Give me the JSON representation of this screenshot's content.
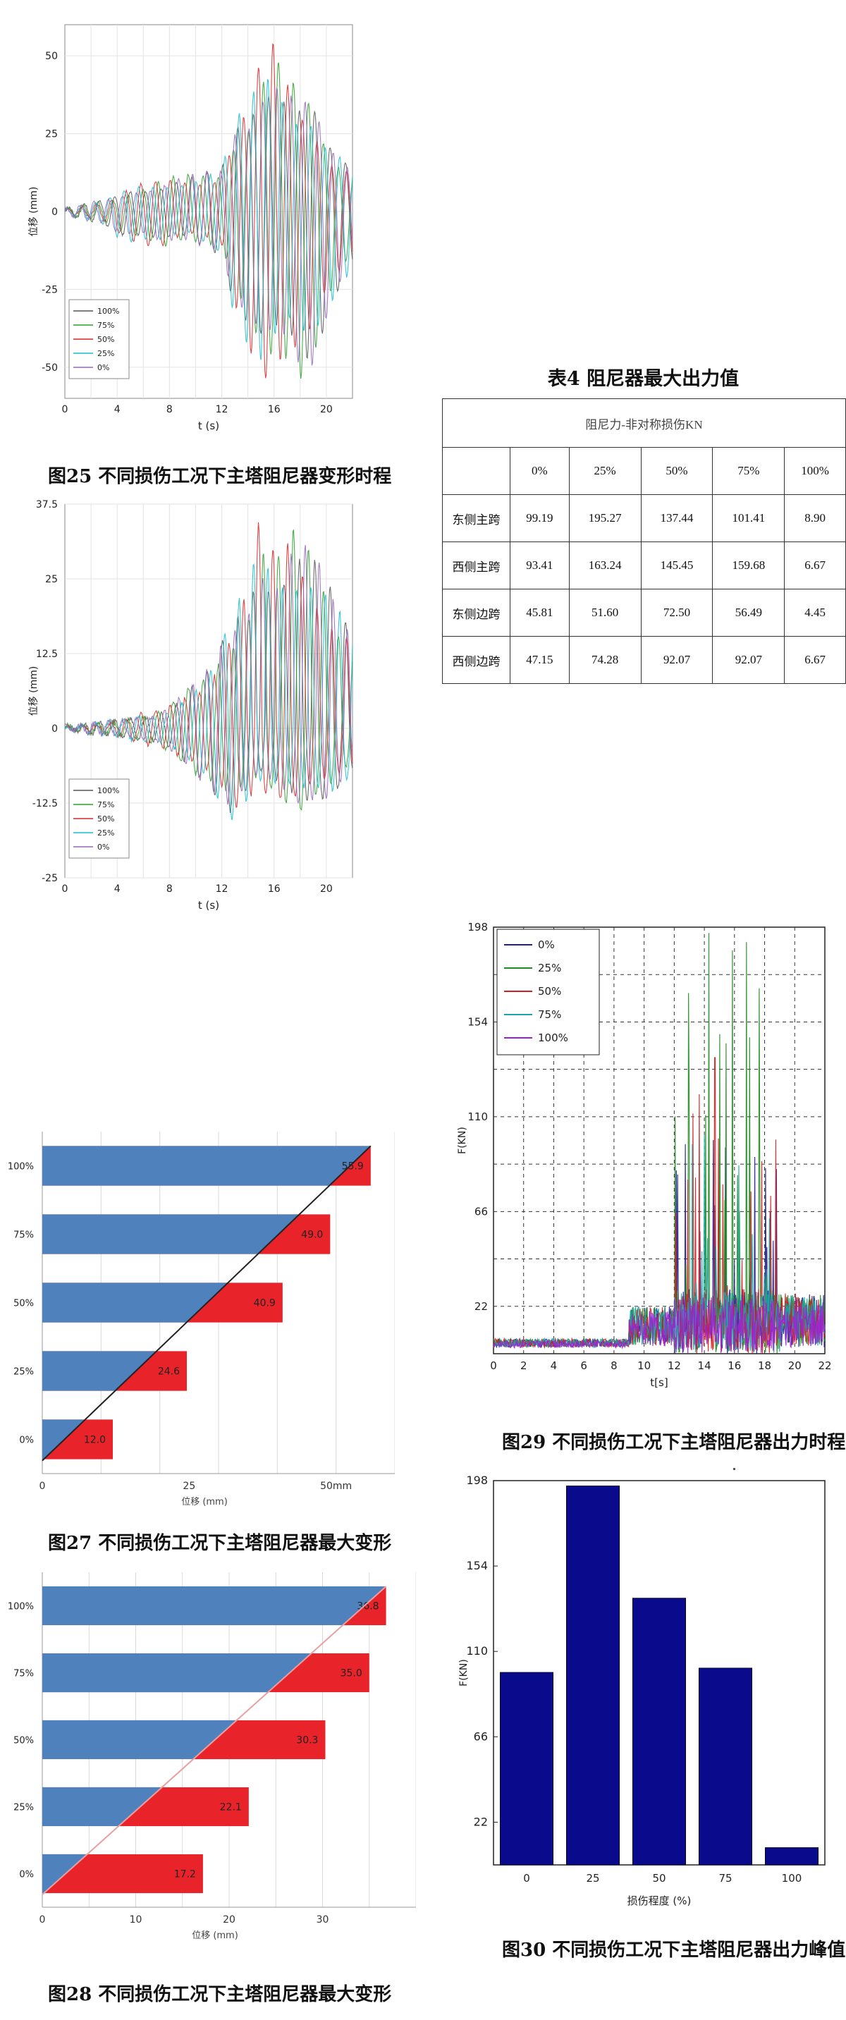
{
  "figures": {
    "fig25": {
      "caption": "图25  不同损伤工况下主塔阻尼器变形时程"
    },
    "fig26": {
      "caption": ""
    },
    "fig27": {
      "caption": "图27  不同损伤工况下主塔阻尼器最大变形"
    },
    "fig28": {
      "caption": "图28  不同损伤工况下主塔阻尼器最大变形"
    },
    "fig29": {
      "caption": "图29  不同损伤工况下主塔阻尼器出力时程"
    },
    "fig30": {
      "caption": "图30  不同损伤工况下主塔阻尼器出力峰值"
    }
  },
  "table4": {
    "title": "表4  阻尼器最大出力值",
    "header": "阻尼力-非对称损伤KN",
    "columns": [
      "0%",
      "25%",
      "50%",
      "75%",
      "100%"
    ],
    "rows": [
      {
        "label": "东侧主跨",
        "values": [
          "99.19",
          "195.27",
          "137.44",
          "101.41",
          "8.90"
        ]
      },
      {
        "label": "西侧主跨",
        "values": [
          "93.41",
          "163.24",
          "145.45",
          "159.68",
          "6.67"
        ]
      },
      {
        "label": "东侧边跨",
        "values": [
          "45.81",
          "51.60",
          "72.50",
          "56.49",
          "4.45"
        ]
      },
      {
        "label": "西侧边跨",
        "values": [
          "47.15",
          "74.28",
          "92.07",
          "92.07",
          "6.67"
        ]
      }
    ]
  },
  "chart_data": [
    {
      "id": "fig25",
      "type": "line",
      "xlabel": "t (s)",
      "ylabel": "位移 (mm)",
      "xlim": [
        0,
        22
      ],
      "ylim": [
        -60,
        60
      ],
      "xticks": [
        0,
        4,
        8,
        12,
        16,
        20
      ],
      "yticks": [
        50,
        25,
        0,
        -25,
        -50
      ],
      "ytick_labels": [
        "50",
        "25",
        "0",
        "-25",
        "-50"
      ],
      "legend": "bottom-left",
      "grid": true,
      "series": [
        {
          "name": "100%",
          "color": "#555555"
        },
        {
          "name": "75%",
          "color": "#2ca02c"
        },
        {
          "name": "50%",
          "color": "#d62728"
        },
        {
          "name": "25%",
          "color": "#17becf"
        },
        {
          "name": "0%",
          "color": "#9467bd"
        }
      ],
      "x": [
        0,
        1,
        2,
        3,
        4,
        5,
        6,
        7,
        8,
        9,
        10,
        11,
        12,
        13,
        14,
        15,
        16,
        17,
        18,
        19,
        20,
        21,
        22
      ],
      "envelope_peak": [
        1,
        2,
        3,
        4,
        5,
        8,
        9,
        10,
        11,
        12,
        12,
        13,
        14,
        30,
        35,
        50,
        55,
        45,
        38,
        35,
        22,
        18,
        15
      ],
      "envelope_trough": [
        -1,
        -2,
        -3,
        -4,
        -8,
        -10,
        -10,
        -12,
        -11,
        -9,
        -10,
        -12,
        -14,
        -35,
        -45,
        -55,
        -52,
        -48,
        -54,
        -50,
        -35,
        -25,
        -18
      ],
      "annotations": [
        "50",
        "25",
        "0",
        "-25",
        "-50",
        "100%",
        "75%",
        "50%",
        "25%",
        "0%"
      ]
    },
    {
      "id": "fig26",
      "type": "line",
      "xlabel": "t (s)",
      "ylabel": "位移 (mm)",
      "xlim": [
        0,
        22
      ],
      "ylim": [
        -25,
        37.5
      ],
      "xticks": [
        0,
        4,
        8,
        12,
        16,
        20
      ],
      "yticks": [
        37.5,
        25,
        12.5,
        0,
        -12.5,
        -25
      ],
      "ytick_labels": [
        "37.5",
        "25",
        "12.5",
        "0",
        "-12.5",
        "-25"
      ],
      "legend": "bottom-left",
      "grid": true,
      "series": [
        {
          "name": "100%",
          "color": "#555555"
        },
        {
          "name": "75%",
          "color": "#2ca02c"
        },
        {
          "name": "50%",
          "color": "#d62728"
        },
        {
          "name": "25%",
          "color": "#17becf"
        },
        {
          "name": "0%",
          "color": "#9467bd"
        }
      ],
      "x": [
        0,
        1,
        2,
        3,
        4,
        5,
        6,
        7,
        8,
        9,
        10,
        11,
        12,
        13,
        14,
        15,
        16,
        17,
        18,
        19,
        20,
        21,
        22
      ],
      "envelope_peak": [
        0.5,
        0.5,
        1,
        1,
        1.5,
        2,
        2.5,
        3,
        4,
        6,
        8,
        10,
        15,
        20,
        25,
        37,
        30,
        34,
        33,
        30,
        25,
        20,
        18
      ],
      "envelope_trough": [
        -0.5,
        -0.5,
        -1,
        -1,
        -1.5,
        -2,
        -2.5,
        -3,
        -4,
        -6,
        -8,
        -10,
        -13,
        -16,
        -12,
        -10,
        -12,
        -13,
        -14,
        -12,
        -12,
        -10,
        -8
      ]
    },
    {
      "id": "fig27",
      "type": "bar",
      "orientation": "horizontal",
      "categories": [
        "100%",
        "75%",
        "50%",
        "25%",
        "0%"
      ],
      "values": [
        55.9,
        49.0,
        40.9,
        24.6,
        12.0
      ],
      "value_labels": [
        "55.9",
        "49.0",
        "40.9",
        "24.6",
        "12.0"
      ],
      "xlabel": "位移 (mm)",
      "xlim": [
        0,
        60
      ],
      "xticks": [
        0,
        25,
        50
      ],
      "xtick_labels": [
        "0",
        "25",
        "50mm"
      ],
      "colors": {
        "bar": "#4f81bd",
        "fill": "#e8232a",
        "line": "#222222"
      }
    },
    {
      "id": "fig28",
      "type": "bar",
      "orientation": "horizontal",
      "categories": [
        "100%",
        "75%",
        "50%",
        "25%",
        "0%"
      ],
      "values": [
        36.8,
        35.0,
        30.3,
        22.1,
        17.2
      ],
      "value_labels": [
        "36.8",
        "35.0",
        "30.3",
        "22.1",
        "17.2"
      ],
      "xlabel": "位移 (mm)",
      "xlim": [
        0,
        40
      ],
      "xticks": [
        0,
        10,
        20,
        30
      ],
      "xtick_labels": [
        "0",
        "10",
        "20",
        "30"
      ],
      "colors": {
        "bar": "#4f81bd",
        "fill": "#e8232a",
        "line": "#e8a0a0"
      }
    },
    {
      "id": "fig29",
      "type": "line",
      "xlabel": "t[s]",
      "ylabel": "F(KN)",
      "xlim": [
        0,
        22
      ],
      "ylim": [
        0,
        198
      ],
      "xticks": [
        0,
        2,
        4,
        6,
        8,
        10,
        12,
        14,
        16,
        18,
        20,
        22
      ],
      "yticks": [
        22,
        66,
        110,
        154,
        198
      ],
      "legend": "top-left",
      "grid": true,
      "series": [
        {
          "name": "0%",
          "color": "#1f1f8f",
          "peak": 99.19
        },
        {
          "name": "25%",
          "color": "#1e8c1e",
          "peak": 195.27
        },
        {
          "name": "50%",
          "color": "#d21f1f",
          "peak": 137.44
        },
        {
          "name": "75%",
          "color": "#1aa6a6",
          "peak": 101.41
        },
        {
          "name": "100%",
          "color": "#a020d0",
          "peak": 8.9
        }
      ]
    },
    {
      "id": "fig30",
      "type": "bar",
      "categories": [
        "0",
        "25",
        "50",
        "75",
        "100"
      ],
      "values": [
        99.19,
        195.27,
        137.44,
        101.41,
        8.9
      ],
      "xlabel": "损伤程度 (%)",
      "ylabel": "F(KN)",
      "ylim": [
        0,
        198
      ],
      "yticks": [
        22,
        66,
        110,
        154,
        198
      ],
      "colors": {
        "bar": "#0a0a8c"
      }
    }
  ]
}
